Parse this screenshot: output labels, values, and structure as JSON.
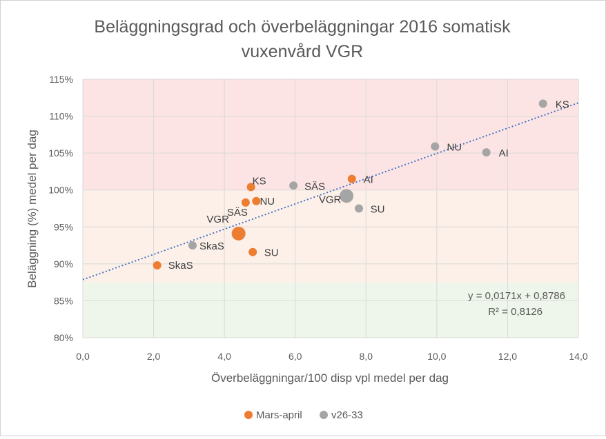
{
  "chart_data": {
    "type": "scatter",
    "title": [
      "Beläggningsgrad och överbeläggningar 2016 somatisk",
      "vuxenvård VGR"
    ],
    "xlabel": "Överbeläggningar/100 disp vpl medel per dag",
    "ylabel": "Beläggning (%) medel per dag",
    "xlim": [
      0,
      14
    ],
    "ylim": [
      0.8,
      1.15
    ],
    "x_ticks": [
      0,
      2,
      4,
      6,
      8,
      10,
      12,
      14
    ],
    "x_tick_labels": [
      "0,0",
      "2,0",
      "4,0",
      "6,0",
      "8,0",
      "10,0",
      "12,0",
      "14,0"
    ],
    "y_ticks": [
      0.8,
      0.85,
      0.9,
      0.95,
      1.0,
      1.05,
      1.1,
      1.15
    ],
    "y_tick_labels": [
      "80%",
      "85%",
      "90%",
      "95%",
      "100%",
      "105%",
      "110%",
      "115%"
    ],
    "grid": true,
    "bands": [
      {
        "from": 1.0,
        "to": 1.15,
        "color": "#fce4e4"
      },
      {
        "from": 0.875,
        "to": 1.0,
        "color": "#fcf0e8"
      },
      {
        "from": 0.8,
        "to": 0.875,
        "color": "#eef5ea"
      }
    ],
    "series": [
      {
        "name": "Mars-april",
        "color": "#ed7d31",
        "points": [
          {
            "label": "KS",
            "x": 4.75,
            "y": 1.004
          },
          {
            "label": "NU",
            "x": 4.9,
            "y": 0.985
          },
          {
            "label": "SÄS",
            "x": 4.6,
            "y": 0.983
          },
          {
            "label": "VGR",
            "x": 4.4,
            "y": 0.941,
            "large": true
          },
          {
            "label": "SU",
            "x": 4.8,
            "y": 0.916
          },
          {
            "label": "SkaS",
            "x": 2.1,
            "y": 0.898
          },
          {
            "label": "AI",
            "x": 7.6,
            "y": 1.015
          }
        ]
      },
      {
        "name": "v26-33",
        "color": "#a5a5a5",
        "points": [
          {
            "label": "KS",
            "x": 13.0,
            "y": 1.117
          },
          {
            "label": "NU",
            "x": 9.95,
            "y": 1.059
          },
          {
            "label": "AI",
            "x": 11.4,
            "y": 1.051
          },
          {
            "label": "SÄS",
            "x": 5.95,
            "y": 1.006
          },
          {
            "label": "VGR",
            "x": 7.45,
            "y": 0.992,
            "large": true
          },
          {
            "label": "SU",
            "x": 7.8,
            "y": 0.975
          },
          {
            "label": "SkaS",
            "x": 3.1,
            "y": 0.925
          }
        ]
      }
    ],
    "trendline": {
      "slope": 0.0171,
      "intercept": 0.8786,
      "color": "#4472c4",
      "equation": "y = 0,0171x + 0,8786",
      "r2": "R² = 0,8126"
    },
    "legend_position": "bottom"
  }
}
